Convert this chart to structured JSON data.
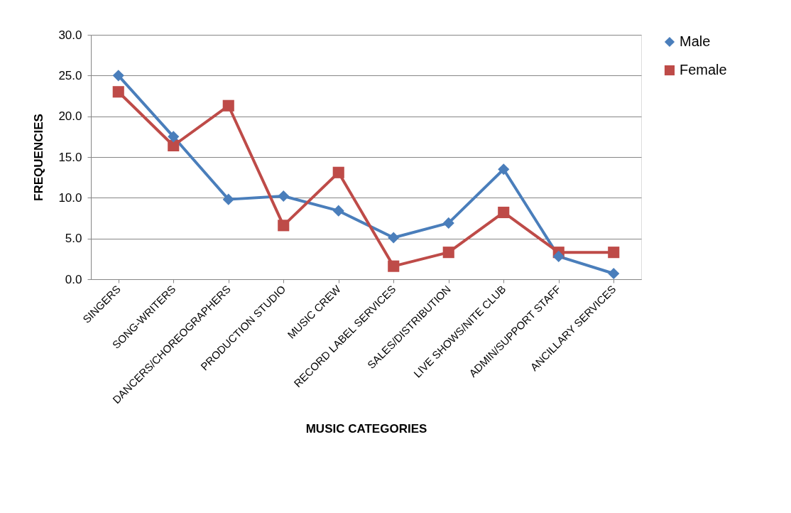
{
  "chart_data": {
    "type": "line",
    "xlabel": "MUSIC CATEGORIES",
    "ylabel": "FREQUENCIES",
    "categories": [
      "SINGERS",
      "SONG-WRITERS",
      "DANCERS/CHOREOGRAPHERS",
      "PRODUCTION STUDIO",
      "MUSIC CREW",
      "RECORD LABEL SERVICES",
      "SALES/DISTRIBUTION",
      "LIVE SHOWS/NITE CLUB",
      "ADMIN/SUPPORT STAFF",
      "ANCILLARY SERVICES"
    ],
    "series": [
      {
        "name": "Male",
        "color": "#4a7ebb",
        "marker": "diamond",
        "values": [
          25.0,
          17.5,
          9.8,
          10.2,
          8.4,
          5.1,
          6.9,
          13.5,
          2.8,
          0.7
        ]
      },
      {
        "name": "Female",
        "color": "#be4b48",
        "marker": "square",
        "values": [
          23.0,
          16.4,
          21.3,
          6.6,
          13.1,
          1.6,
          3.3,
          8.2,
          3.3,
          3.3
        ]
      }
    ],
    "ylim": [
      0,
      30
    ],
    "yticks": [
      {
        "value": 0,
        "label": "0.0"
      },
      {
        "value": 5,
        "label": "5.0"
      },
      {
        "value": 10,
        "label": "10.0"
      },
      {
        "value": 15,
        "label": "15.0"
      },
      {
        "value": 20,
        "label": "20.0"
      },
      {
        "value": 25,
        "label": "25.0"
      },
      {
        "value": 30,
        "label": "30.0"
      }
    ],
    "grid": "y",
    "legend": "right",
    "line_style": "solid"
  }
}
